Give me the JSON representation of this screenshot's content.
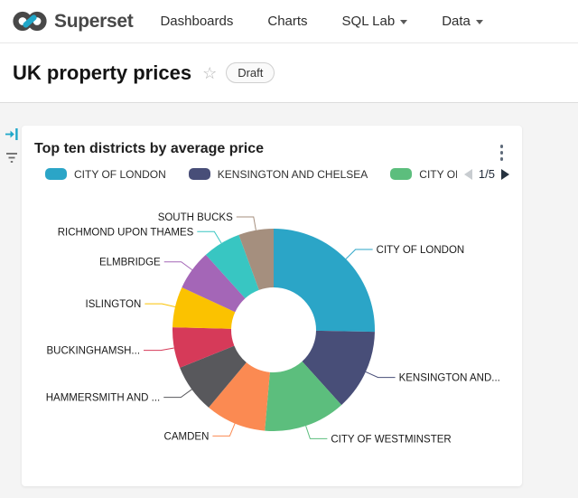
{
  "header": {
    "brand": "Superset",
    "nav": [
      {
        "label": "Dashboards",
        "has_caret": false
      },
      {
        "label": "Charts",
        "has_caret": false
      },
      {
        "label": "SQL Lab",
        "has_caret": true
      },
      {
        "label": "Data",
        "has_caret": true
      }
    ]
  },
  "title_bar": {
    "title": "UK property prices",
    "status_badge": "Draft"
  },
  "icons": {
    "logo": "superset-infinity-logo",
    "star": "star-outline-icon",
    "expand_filter": "expand-filter-bar-icon",
    "filter": "filter-icon",
    "more": "more-vertical-icon",
    "prev": "page-prev-icon",
    "next": "page-next-icon"
  },
  "colors": {
    "brand_teal": "#20A7C9",
    "dashboard_bg": "#F4F4F4"
  },
  "card": {
    "title": "Top ten districts by average price",
    "legend": {
      "visible_items": [
        {
          "label": "CITY OF LONDON",
          "color": "#2BA5C7"
        },
        {
          "label": "KENSINGTON AND CHELSEA",
          "color": "#484E78"
        },
        {
          "label": "CITY OF WES",
          "color": "#5CBE7D"
        }
      ],
      "pagination": "1/5"
    }
  },
  "chart_data": {
    "type": "pie",
    "donut": true,
    "title": "Top ten districts by average price",
    "legend_position": "top",
    "start_angle_deg": 0,
    "slices": [
      {
        "label": "CITY OF LONDON",
        "percent": 25.3,
        "color": "#2BA5C7"
      },
      {
        "label": "KENSINGTON AND...",
        "percent": 13.0,
        "color": "#484E78"
      },
      {
        "label": "CITY OF WESTMINSTER",
        "percent": 13.1,
        "color": "#5CBE7D"
      },
      {
        "label": "CAMDEN",
        "percent": 9.7,
        "color": "#FB8A52"
      },
      {
        "label": "HAMMERSMITH AND ...",
        "percent": 7.8,
        "color": "#58585C"
      },
      {
        "label": "BUCKINGHAMSH...",
        "percent": 6.5,
        "color": "#D63A59"
      },
      {
        "label": "ISLINGTON",
        "percent": 6.5,
        "color": "#FBC200"
      },
      {
        "label": "ELMBRIDGE",
        "percent": 6.4,
        "color": "#A466B7"
      },
      {
        "label": "RICHMOND UPON THAMES",
        "percent": 6.1,
        "color": "#38C6C2"
      },
      {
        "label": "SOUTH BUCKS",
        "percent": 5.6,
        "color": "#A58F7E"
      }
    ]
  }
}
